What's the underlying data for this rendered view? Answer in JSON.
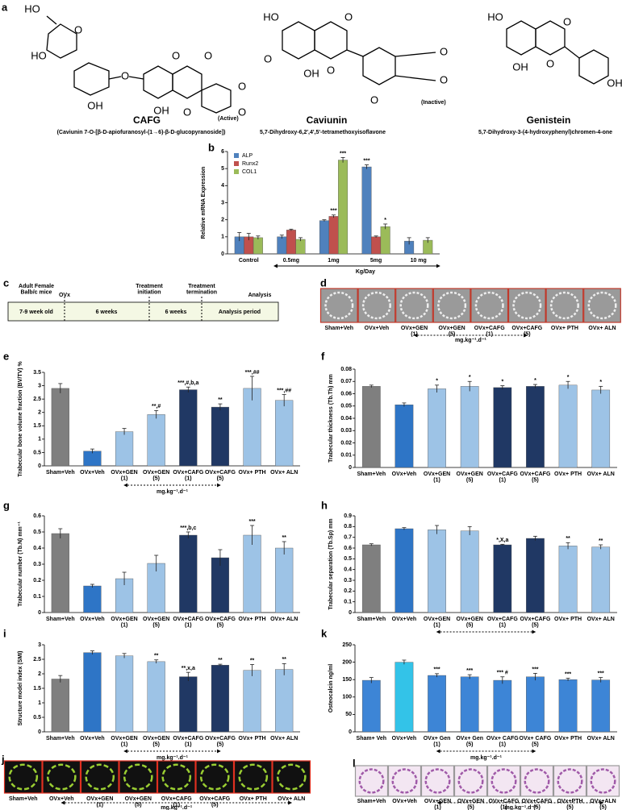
{
  "panel_labels": [
    "a",
    "b",
    "c",
    "d",
    "e",
    "f",
    "g",
    "h",
    "i",
    "k",
    "j",
    "l"
  ],
  "compounds": [
    {
      "name": "CAFG",
      "note": "(Active)",
      "formula": "(Caviunin 7-O-[β-D-apiofuranosyl-(1→6)-β-D-glucopyranoside])",
      "atoms": [
        "HO",
        "O",
        "HO",
        "OH",
        "O",
        "O",
        "O",
        "OH",
        "O",
        "O",
        "O"
      ]
    },
    {
      "name": "Caviunin",
      "note": "(Inactive)",
      "formula": "5,7-Dihydroxy-6,2',4',5'-tetramethoxyisoflavone",
      "atoms": [
        "HO",
        "O",
        "O",
        "OH",
        "O",
        "O",
        "O",
        "O"
      ]
    },
    {
      "name": "Genistein",
      "formula": "5,7-Dihydroxy-3-(4-hydroxyphenyl)chromen-4-one",
      "atoms": [
        "HO",
        "O",
        "OH",
        "O",
        "OH"
      ]
    }
  ],
  "timeline": {
    "events": [
      "Adult Female\nBalb/c mice",
      "OVx",
      "Treatment\ninitiation",
      "Treatment\ntermination",
      "Analysis"
    ],
    "periods": [
      "7-9 week old",
      "6 weeks",
      "6 weeks",
      "Analysis period"
    ]
  },
  "microct": {
    "captions": [
      "Sham+Veh",
      "OVx+Veh",
      "OVx+GEN\n(1)",
      "OVx+GEN\n(5)",
      "OVx+CAFG\n(1)",
      "OVx+CAFG\n(5)",
      "OVx+ PTH",
      "OVx+ ALN"
    ],
    "dose_note": "mg.kg⁻¹.d⁻¹"
  },
  "calcein": {
    "captions": [
      "Sham+Veh",
      "OVx+Veh",
      "OVx+GEN\n(1)",
      "OVx+GEN\n(5)",
      "OVx+CAFG\n(1)",
      "OVx+CAFG\n(5)",
      "OVx+ PTH",
      "OVx+ ALN"
    ],
    "dose_note": "mg.kg⁻¹.d⁻¹"
  },
  "histology": {
    "captions": [
      "Sham+Veh",
      "OVx+Veh",
      "OVx+GEN\n(1)",
      "OVx+GEN\n(5)",
      "OVx+CAFG\n(1)",
      "OVx+CAFG\n(5)",
      "OVx+PTH\n(5)",
      "OVx+ALN\n(5)"
    ],
    "dose_note": "mg.kg⁻¹.d⁻¹"
  },
  "chart_data": [
    {
      "type": "bar",
      "y_label": "Relative mRNA Expression",
      "x_label": "Kg/Day",
      "categories": [
        "Control",
        "0.5mg",
        "1mg",
        "5mg",
        "10 mg"
      ],
      "series": [
        {
          "name": "ALP",
          "color": "#4f81bd",
          "values": [
            1,
            1,
            1.95,
            5.1,
            0.75
          ],
          "errors": [
            0.25,
            0.1,
            0.05,
            0.12,
            0.2
          ],
          "annotations": [
            null,
            null,
            null,
            "***",
            null
          ]
        },
        {
          "name": "Runx2",
          "color": "#c0504d",
          "values": [
            1,
            1.4,
            2.2,
            1.0,
            null
          ],
          "errors": [
            0.2,
            0.05,
            0.08,
            0.05,
            null
          ],
          "annotations": [
            null,
            null,
            "***",
            null,
            null
          ]
        },
        {
          "name": "COL1",
          "color": "#9bbb59",
          "values": [
            0.95,
            0.85,
            5.5,
            1.6,
            0.8
          ],
          "errors": [
            0.1,
            0.1,
            0.15,
            0.15,
            0.15
          ],
          "annotations": [
            null,
            null,
            "***",
            "*",
            null
          ]
        }
      ],
      "ylim": [
        0,
        6
      ],
      "yticks": [
        0,
        1,
        2,
        3,
        4,
        5,
        6
      ],
      "grid": false
    },
    {
      "type": "bar",
      "y_label": "Trabecular bone volume fraction (BV/TV) %",
      "dose_note": "mg.kg⁻¹.d⁻¹",
      "categories": [
        "Sham+Veh",
        "OVx+Veh",
        "OVx+GEN\n(1)",
        "OVx+GEN\n(5)",
        "OVx+CAFG\n(1)",
        "OVx+CAFG\n(5)",
        "OVx+ PTH",
        "OVx+ ALN"
      ],
      "colors": [
        "#7f7f7f",
        "#2e75c6",
        "#9dc3e6",
        "#9dc3e6",
        "#203864",
        "#203864",
        "#9dc3e6",
        "#9dc3e6"
      ],
      "values": [
        2.9,
        0.55,
        1.28,
        1.92,
        2.85,
        2.2,
        2.9,
        2.45
      ],
      "errors": [
        0.18,
        0.08,
        0.12,
        0.15,
        0.1,
        0.12,
        0.45,
        0.22
      ],
      "annotations": [
        null,
        null,
        null,
        "**,#",
        "***,#,b,a",
        "**",
        "***,##",
        "***,##"
      ],
      "ylim": [
        0,
        3.5
      ],
      "yticks": [
        0,
        0.5,
        1,
        1.5,
        2,
        2.5,
        3,
        3.5
      ],
      "grid": false
    },
    {
      "type": "bar",
      "y_label": "Trabecular thickness (Tb.Th) mm",
      "categories": [
        "Sham+Veh",
        "OVx+Veh",
        "OVx+GEN\n(1)",
        "OVx+GEN\n(5)",
        "OVx+CAFG\n(1)",
        "OVx+CAFG\n(5)",
        "OVx+ PTH",
        "OVx+ ALN"
      ],
      "colors": [
        "#7f7f7f",
        "#2e75c6",
        "#9dc3e6",
        "#9dc3e6",
        "#203864",
        "#203864",
        "#9dc3e6",
        "#9dc3e6"
      ],
      "values": [
        0.066,
        0.051,
        0.064,
        0.066,
        0.065,
        0.066,
        0.067,
        0.063
      ],
      "errors": [
        0.001,
        0.0015,
        0.003,
        0.004,
        0.0015,
        0.0015,
        0.003,
        0.003
      ],
      "annotations": [
        null,
        null,
        "*",
        "*",
        "*",
        "*",
        "*",
        "*"
      ],
      "ylim": [
        0,
        0.08
      ],
      "yticks": [
        0,
        0.01,
        0.02,
        0.03,
        0.04,
        0.05,
        0.06,
        0.07,
        0.08
      ],
      "grid": false
    },
    {
      "type": "bar",
      "y_label": "Trabecular number (Tb.N) mm⁻¹",
      "categories": [
        "Sham+Veh",
        "OVx+Veh",
        "OVx+GEN\n(1)",
        "OVx+GEN\n(5)",
        "OVx+CAFG\n(1)",
        "OVx+CAFG\n(5)",
        "OVx+ PTH",
        "OVx+ ALN"
      ],
      "colors": [
        "#7f7f7f",
        "#2e75c6",
        "#9dc3e6",
        "#9dc3e6",
        "#203864",
        "#203864",
        "#9dc3e6",
        "#9dc3e6"
      ],
      "values": [
        0.49,
        0.165,
        0.21,
        0.305,
        0.48,
        0.34,
        0.48,
        0.4
      ],
      "errors": [
        0.03,
        0.01,
        0.04,
        0.05,
        0.02,
        0.05,
        0.06,
        0.04
      ],
      "annotations": [
        null,
        null,
        null,
        null,
        "***,b,c",
        null,
        "***",
        "**"
      ],
      "ylim": [
        0,
        0.6
      ],
      "yticks": [
        0,
        0.1,
        0.2,
        0.3,
        0.4,
        0.5,
        0.6
      ],
      "grid": false
    },
    {
      "type": "bar",
      "y_label": "Trabecular separation (Tb.Sp) mm",
      "categories": [
        "Sham+Veh",
        "OVx+Veh",
        "OVx+GEN\n(1)",
        "OVx+GEN\n(5)",
        "OVx+CAFG\n(1)",
        "OVx+CAFG\n(5)",
        "OVx+ PTH",
        "OVx+ ALN"
      ],
      "colors": [
        "#7f7f7f",
        "#2e75c6",
        "#9dc3e6",
        "#9dc3e6",
        "#203864",
        "#203864",
        "#9dc3e6",
        "#9dc3e6"
      ],
      "values": [
        0.63,
        0.78,
        0.77,
        0.76,
        0.63,
        0.69,
        0.62,
        0.61
      ],
      "errors": [
        0.01,
        0.01,
        0.04,
        0.04,
        0.005,
        0.02,
        0.03,
        0.02
      ],
      "annotations": [
        null,
        null,
        null,
        null,
        "*,X,a",
        null,
        "**",
        "**"
      ],
      "ylim": [
        0,
        0.9
      ],
      "yticks": [
        0,
        0.1,
        0.2,
        0.3,
        0.4,
        0.5,
        0.6,
        0.7,
        0.8,
        0.9
      ],
      "grid": false
    },
    {
      "type": "bar",
      "y_label": "Structure model index (SMI)",
      "dose_note": "mg.kg⁻¹.d⁻¹",
      "categories": [
        "Sham+Veh",
        "OVx+Veh",
        "OVx+GEN\n(1)",
        "OVx+GEN\n(5)",
        "OVx+CAFG\n(1)",
        "OVx+CAFG\n(5)",
        "OVx+ PTH",
        "OVx+ ALN"
      ],
      "colors": [
        "#7f7f7f",
        "#2e75c6",
        "#9dc3e6",
        "#9dc3e6",
        "#203864",
        "#203864",
        "#9dc3e6",
        "#9dc3e6"
      ],
      "values": [
        1.82,
        2.73,
        2.62,
        2.42,
        1.9,
        2.3,
        2.12,
        2.15
      ],
      "errors": [
        0.12,
        0.06,
        0.08,
        0.06,
        0.15,
        0.03,
        0.2,
        0.2
      ],
      "annotations": [
        null,
        null,
        null,
        "**",
        "**,x,a",
        "**",
        "**",
        "**"
      ],
      "ylim": [
        0,
        3
      ],
      "yticks": [
        0,
        0.5,
        1,
        1.5,
        2,
        2.5,
        3
      ],
      "grid": false
    },
    {
      "type": "bar",
      "y_label": "Osteocalcin ng/ml",
      "dose_note": "mg.kg⁻¹.d⁻¹",
      "categories": [
        "Sham+ Veh",
        "OVx+Veh",
        "OVx+ Gen\n(1)",
        "OVx+ Gen\n(5)",
        "OVx+ CAFG\n(1)",
        "OVx+ CAFG\n(5)",
        "OVx+ PTH",
        "OVx+ ALN"
      ],
      "colors": [
        "#3d85d6",
        "#33c3e8",
        "#3d85d6",
        "#3d85d6",
        "#3d85d6",
        "#3d85d6",
        "#3d85d6",
        "#3d85d6"
      ],
      "values": [
        148,
        200,
        162,
        158,
        148,
        158,
        150,
        149
      ],
      "errors": [
        8,
        6,
        5,
        6,
        10,
        10,
        4,
        7
      ],
      "annotations": [
        null,
        null,
        "***",
        "***",
        "*** #",
        "***",
        "***",
        "***"
      ],
      "ylim": [
        0,
        250
      ],
      "yticks": [
        0,
        50,
        100,
        150,
        200,
        250
      ],
      "grid": false
    }
  ]
}
